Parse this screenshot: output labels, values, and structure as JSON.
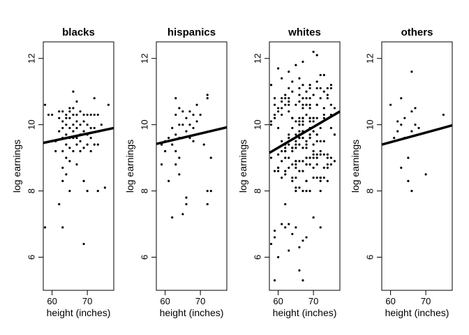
{
  "chart_data": [
    {
      "type": "scatter",
      "title": "blacks",
      "xlabel": "height (inches)",
      "ylabel": "log earnings",
      "xlim": [
        57.5,
        77.5
      ],
      "ylim": [
        5,
        12.5
      ],
      "xticks": [
        60,
        70
      ],
      "yticks": [
        6,
        8,
        10,
        12
      ],
      "fit": {
        "x": [
          57.5,
          77.5
        ],
        "y": [
          9.45,
          9.9
        ]
      },
      "points": [
        [
          58,
          6.9
        ],
        [
          58,
          10.6
        ],
        [
          59,
          10.3
        ],
        [
          60,
          10.3
        ],
        [
          61,
          9.5
        ],
        [
          61,
          9.2
        ],
        [
          62,
          7.6
        ],
        [
          62,
          10.4
        ],
        [
          62,
          10.2
        ],
        [
          62,
          9.8
        ],
        [
          63,
          10.4
        ],
        [
          63,
          10.1
        ],
        [
          63,
          9.9
        ],
        [
          63,
          9.6
        ],
        [
          63,
          9.2
        ],
        [
          63,
          8.7
        ],
        [
          63,
          8.3
        ],
        [
          63,
          6.9
        ],
        [
          64,
          10.3
        ],
        [
          64,
          10.2
        ],
        [
          64,
          10.0
        ],
        [
          64,
          9.7
        ],
        [
          64,
          9.4
        ],
        [
          64,
          9.0
        ],
        [
          64,
          8.5
        ],
        [
          65,
          10.5
        ],
        [
          65,
          10.4
        ],
        [
          65,
          10.2
        ],
        [
          65,
          9.9
        ],
        [
          65,
          9.6
        ],
        [
          65,
          9.3
        ],
        [
          65,
          8.9
        ],
        [
          65,
          8.0
        ],
        [
          66,
          11.0
        ],
        [
          66,
          10.5
        ],
        [
          66,
          10.3
        ],
        [
          66,
          10.0
        ],
        [
          66,
          9.8
        ],
        [
          66,
          9.6
        ],
        [
          66,
          9.2
        ],
        [
          67,
          10.7
        ],
        [
          67,
          10.3
        ],
        [
          67,
          10.1
        ],
        [
          67,
          9.9
        ],
        [
          67,
          9.6
        ],
        [
          67,
          9.4
        ],
        [
          67,
          8.8
        ],
        [
          68,
          10.4
        ],
        [
          68,
          10.0
        ],
        [
          68,
          9.7
        ],
        [
          68,
          9.5
        ],
        [
          68,
          9.2
        ],
        [
          69,
          10.3
        ],
        [
          69,
          10.1
        ],
        [
          69,
          9.8
        ],
        [
          69,
          9.3
        ],
        [
          69,
          8.3
        ],
        [
          69,
          6.4
        ],
        [
          70,
          10.3
        ],
        [
          70,
          10.0
        ],
        [
          70,
          9.7
        ],
        [
          70,
          9.4
        ],
        [
          70,
          8.0
        ],
        [
          71,
          10.3
        ],
        [
          71,
          9.9
        ],
        [
          71,
          9.6
        ],
        [
          71,
          9.2
        ],
        [
          72,
          10.8
        ],
        [
          72,
          10.3
        ],
        [
          72,
          9.9
        ],
        [
          72,
          9.4
        ],
        [
          73,
          10.3
        ],
        [
          73,
          9.4
        ],
        [
          73,
          8.0
        ],
        [
          74,
          10.0
        ],
        [
          75,
          8.1
        ],
        [
          76,
          10.6
        ]
      ]
    },
    {
      "type": "scatter",
      "title": "hispanics",
      "xlabel": "height (inches)",
      "ylabel": "log earnings",
      "xlim": [
        57.5,
        77.5
      ],
      "ylim": [
        5,
        12.5
      ],
      "xticks": [
        60,
        70
      ],
      "yticks": [
        6,
        8,
        10,
        12
      ],
      "fit": {
        "x": [
          57.5,
          77.5
        ],
        "y": [
          9.42,
          9.92
        ]
      },
      "points": [
        [
          59,
          9.4
        ],
        [
          59,
          8.8
        ],
        [
          60,
          9.5
        ],
        [
          60,
          9.2
        ],
        [
          61,
          8.3
        ],
        [
          61,
          9.6
        ],
        [
          62,
          9.9
        ],
        [
          62,
          9.4
        ],
        [
          62,
          7.2
        ],
        [
          63,
          10.8
        ],
        [
          63,
          10.3
        ],
        [
          63,
          9.7
        ],
        [
          63,
          9.2
        ],
        [
          63,
          8.8
        ],
        [
          64,
          10.5
        ],
        [
          64,
          10.0
        ],
        [
          64,
          9.6
        ],
        [
          64,
          9.0
        ],
        [
          64,
          8.5
        ],
        [
          65,
          10.4
        ],
        [
          65,
          10.0
        ],
        [
          65,
          9.6
        ],
        [
          65,
          7.3
        ],
        [
          66,
          10.2
        ],
        [
          66,
          9.8
        ],
        [
          66,
          7.8
        ],
        [
          66,
          7.6
        ],
        [
          67,
          10.4
        ],
        [
          67,
          10.0
        ],
        [
          67,
          9.6
        ],
        [
          68,
          10.3
        ],
        [
          68,
          9.9
        ],
        [
          68,
          9.5
        ],
        [
          69,
          10.6
        ],
        [
          69,
          10.1
        ],
        [
          70,
          10.3
        ],
        [
          71,
          9.4
        ],
        [
          72,
          10.9
        ],
        [
          72,
          10.8
        ],
        [
          72,
          8.0
        ],
        [
          72,
          7.6
        ],
        [
          73,
          9.0
        ],
        [
          73,
          8.0
        ]
      ]
    },
    {
      "type": "scatter",
      "title": "whites",
      "xlabel": "height (inches)",
      "ylabel": "log earnings",
      "xlim": [
        57.5,
        77.5
      ],
      "ylim": [
        5,
        12.5
      ],
      "xticks": [
        60,
        70
      ],
      "yticks": [
        6,
        8,
        10,
        12
      ],
      "fit": {
        "x": [
          57.5,
          77.5
        ],
        "y": [
          9.15,
          10.4
        ]
      },
      "points": "dense"
    },
    {
      "type": "scatter",
      "title": "others",
      "xlabel": "height (inches)",
      "ylabel": "log earnings",
      "xlim": [
        57.5,
        77.5
      ],
      "ylim": [
        5,
        12.5
      ],
      "xticks": [
        60,
        70
      ],
      "yticks": [
        6,
        8,
        10,
        12
      ],
      "fit": {
        "x": [
          57.5,
          77.5
        ],
        "y": [
          9.4,
          9.98
        ]
      },
      "points": [
        [
          60,
          10.6
        ],
        [
          61,
          9.6
        ],
        [
          62,
          10.1
        ],
        [
          62,
          9.8
        ],
        [
          63,
          10.8
        ],
        [
          63,
          10.0
        ],
        [
          63,
          8.7
        ],
        [
          64,
          10.2
        ],
        [
          64,
          9.6
        ],
        [
          65,
          9.0
        ],
        [
          65,
          8.3
        ],
        [
          66,
          11.6
        ],
        [
          66,
          10.4
        ],
        [
          66,
          9.8
        ],
        [
          66,
          8.0
        ],
        [
          67,
          10.5
        ],
        [
          67,
          10.0
        ],
        [
          68,
          9.9
        ],
        [
          70,
          8.5
        ],
        [
          75,
          10.3
        ]
      ]
    }
  ],
  "whites_dense": {
    "x_min": 58,
    "x_max": 76,
    "core_lo": 8.0,
    "core_hi": 11.2,
    "extra": [
      [
        58,
        6.4
      ],
      [
        59,
        5.3
      ],
      [
        59,
        6.6
      ],
      [
        59,
        6.8
      ],
      [
        60,
        6.0
      ],
      [
        60,
        11.7
      ],
      [
        61,
        11.4
      ],
      [
        61,
        7.0
      ],
      [
        62,
        7.6
      ],
      [
        62,
        6.9
      ],
      [
        63,
        11.6
      ],
      [
        63,
        7.0
      ],
      [
        63,
        6.2
      ],
      [
        64,
        11.3
      ],
      [
        64,
        6.7
      ],
      [
        65,
        6.9
      ],
      [
        65,
        11.8
      ],
      [
        66,
        5.6
      ],
      [
        66,
        6.3
      ],
      [
        66,
        11.4
      ],
      [
        67,
        5.3
      ],
      [
        67,
        11.9
      ],
      [
        67,
        6.5
      ],
      [
        68,
        6.6
      ],
      [
        69,
        11.1
      ],
      [
        70,
        12.2
      ],
      [
        70,
        7.2
      ],
      [
        71,
        12.1
      ],
      [
        71,
        11.3
      ],
      [
        72,
        11.5
      ],
      [
        72,
        11.1
      ],
      [
        72,
        6.9
      ],
      [
        73,
        11.5
      ],
      [
        74,
        10.9
      ],
      [
        75,
        11.2
      ],
      [
        76,
        10.5
      ]
    ]
  }
}
